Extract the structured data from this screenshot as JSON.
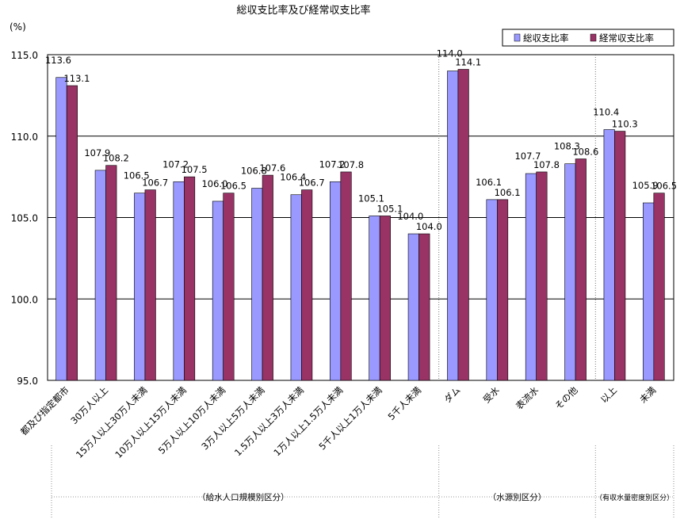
{
  "chart_data": {
    "type": "bar",
    "title": "総収支比率及び経常収支比率",
    "ylabel": "(%)",
    "ylim": [
      95.0,
      115.0
    ],
    "yticks": [
      "95.0",
      "100.0",
      "105.0",
      "110.0",
      "115.0"
    ],
    "grid": "horizontal",
    "legend_position": "top-right",
    "categories": [
      "都及び指定都市",
      "30万人以上",
      "15万人以上30万人未満",
      "10万人以上15万人未満",
      "5万人以上10万人未満",
      "3万人以上5万人未満",
      "1.5万人以上3万人未満",
      "1万人以上1.5万人未満",
      "5千人以上1万人未満",
      "5千人未満",
      "ダム",
      "受水",
      "表流水",
      "その他",
      "以上",
      "未満"
    ],
    "series": [
      {
        "name": "総収支比率",
        "color": "#9999ff",
        "values": [
          113.6,
          107.9,
          106.5,
          107.2,
          106.0,
          106.8,
          106.4,
          107.2,
          105.1,
          104.0,
          114.0,
          106.1,
          107.7,
          108.3,
          110.4,
          105.9
        ],
        "labels": [
          "113.6",
          "107.9",
          "106.5",
          "107.2",
          "106.0",
          "106.8",
          "106.4",
          "107.2",
          "105.1",
          "104.0",
          "114.0",
          "106.1",
          "107.7",
          "108.3",
          "110.4",
          "105.9"
        ]
      },
      {
        "name": "経常収支比率",
        "color": "#993366",
        "values": [
          113.1,
          108.2,
          106.7,
          107.5,
          106.5,
          107.6,
          106.7,
          107.8,
          105.1,
          104.0,
          114.1,
          106.1,
          107.8,
          108.6,
          110.3,
          106.5
        ],
        "labels": [
          "113.1",
          "108.2",
          "106.7",
          "107.5",
          "106.5",
          "107.6",
          "106.7",
          "107.8",
          "105.1",
          "104.0",
          "114.1",
          "106.1",
          "107.8",
          "108.6",
          "110.3",
          "106.5"
        ]
      }
    ],
    "groups": [
      {
        "label": "（給水人口規模別区分）",
        "count": 10
      },
      {
        "label": "（水源別区分）",
        "count": 4
      },
      {
        "label": "（有収水量密度別区分）",
        "count": 2
      }
    ]
  }
}
